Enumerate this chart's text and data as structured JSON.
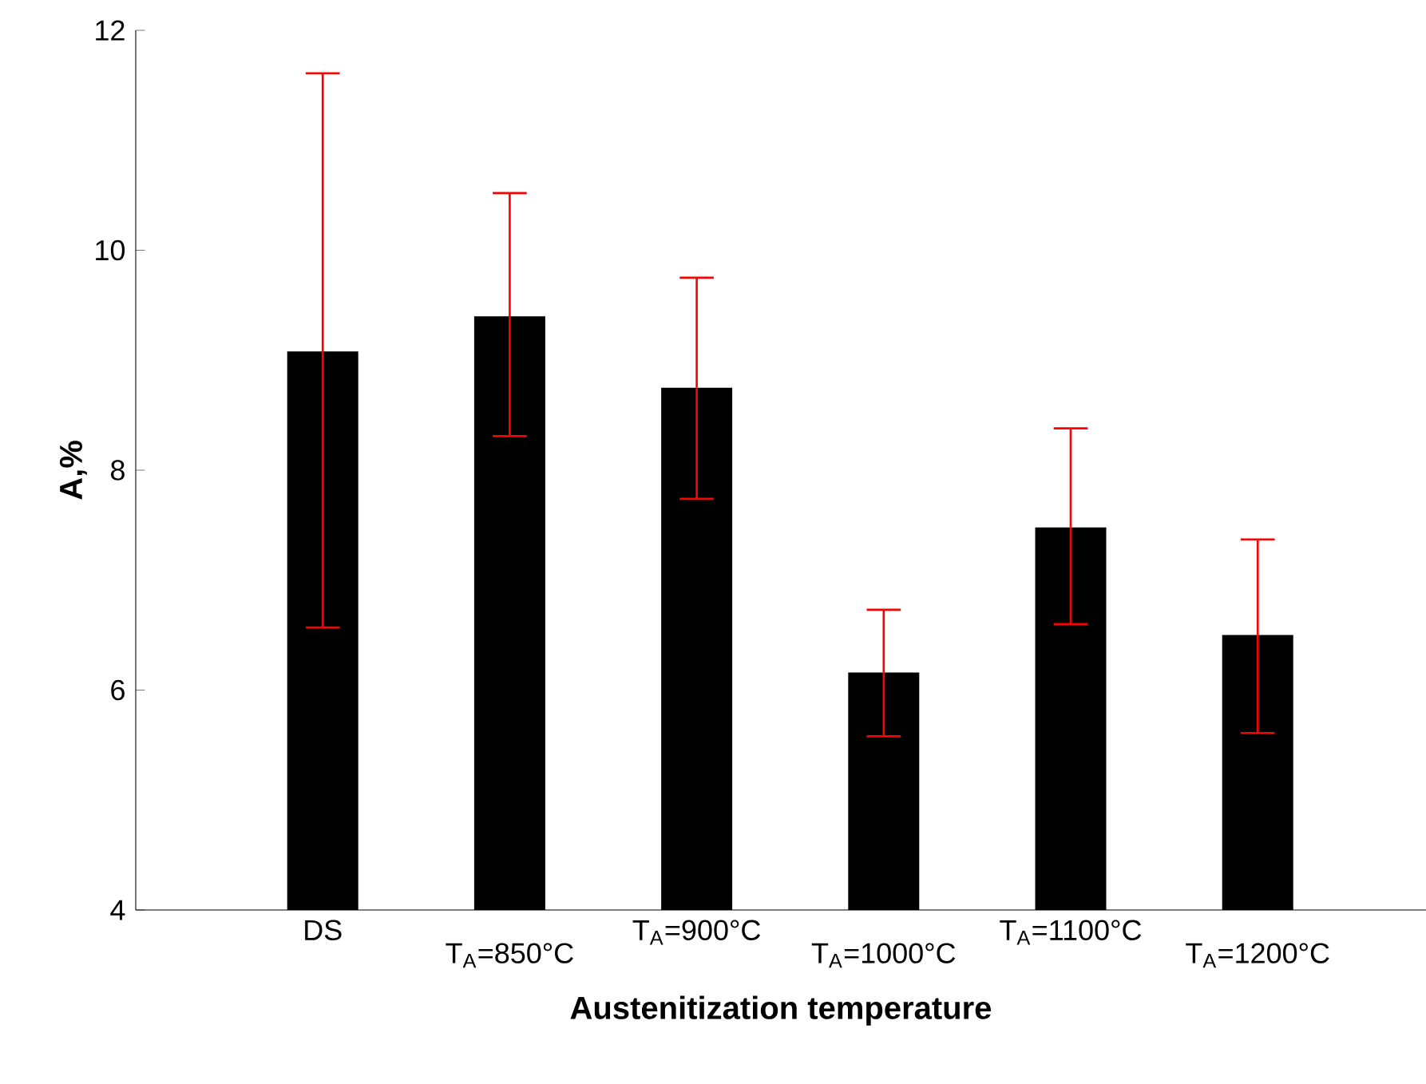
{
  "chart_data": {
    "type": "bar",
    "xlabel": "Austenitization temperature",
    "ylabel": "A,%",
    "categories": [
      "DS",
      "T$_{A}$=850°C",
      "T$_{A}$=900°C",
      "T$_{A}$=1000°C",
      "T$_{A}$=1100°C",
      "T$_{A}$=1200°C"
    ],
    "values": [
      9.08,
      9.4,
      8.75,
      6.16,
      7.48,
      6.5
    ],
    "errors": [
      [
        6.57,
        11.61
      ],
      [
        8.31,
        10.52
      ],
      [
        7.74,
        9.75
      ],
      [
        5.58,
        6.73
      ],
      [
        6.6,
        8.38
      ],
      [
        5.61,
        7.37
      ]
    ],
    "color": "#000000",
    "ylim": [
      4,
      12
    ],
    "yticks": [
      4,
      6,
      8,
      10,
      12
    ],
    "grid": false
  }
}
